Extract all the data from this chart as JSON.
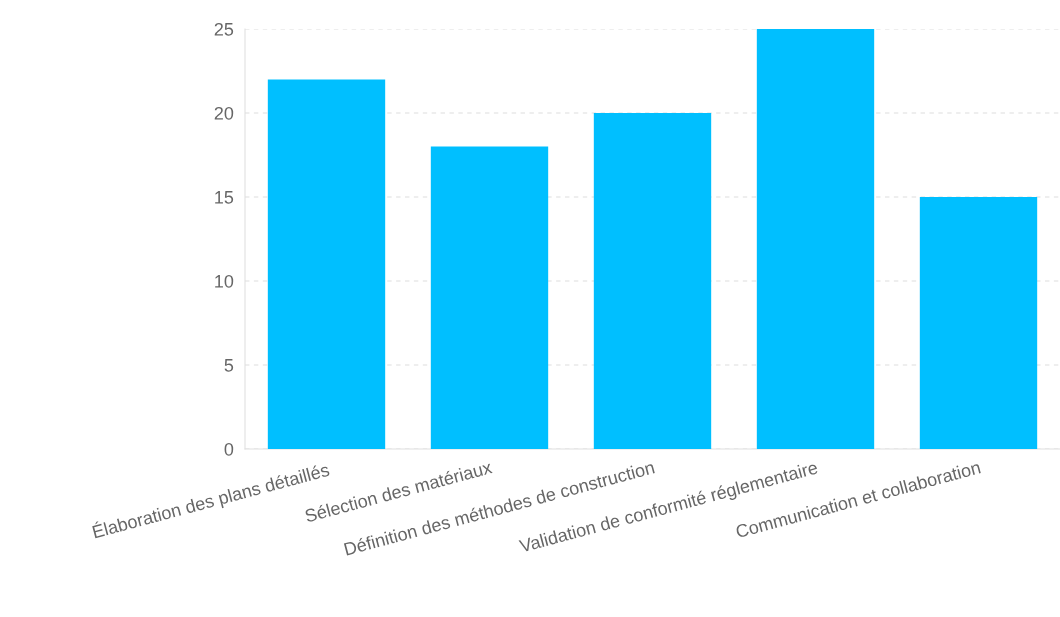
{
  "chart_data": {
    "type": "bar",
    "categories": [
      "Élaboration des plans détaillés",
      "Sélection des matériaux",
      "Définition des méthodes de construction",
      "Validation de conformité réglementaire",
      "Communication et collaboration"
    ],
    "values": [
      22,
      18,
      20,
      25,
      15
    ],
    "color": "#00bfff",
    "ylim": [
      0,
      25
    ],
    "yticks": [
      0,
      5,
      10,
      15,
      20,
      25
    ],
    "grid": "y"
  }
}
